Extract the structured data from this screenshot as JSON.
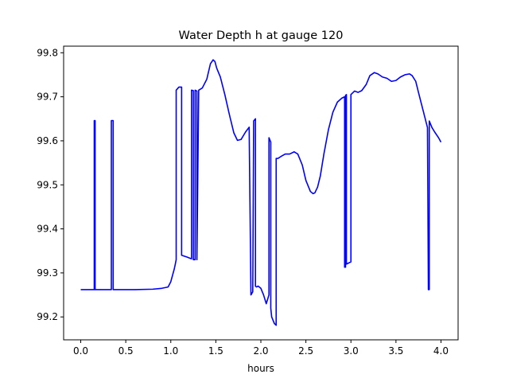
{
  "chart_data": {
    "type": "line",
    "title": "Water Depth h at gauge 120",
    "xlabel": "hours",
    "ylabel": "",
    "xlim": [
      -0.19,
      4.19
    ],
    "ylim": [
      99.148,
      99.815
    ],
    "xticks": [
      0.0,
      0.5,
      1.0,
      1.5,
      2.0,
      2.5,
      3.0,
      3.5,
      4.0
    ],
    "xtick_labels": [
      "0.0",
      "0.5",
      "1.0",
      "1.5",
      "2.0",
      "2.5",
      "3.0",
      "3.5",
      "4.0"
    ],
    "yticks": [
      99.2,
      99.3,
      99.4,
      99.5,
      99.6,
      99.7,
      99.8
    ],
    "ytick_labels": [
      "99.2",
      "99.3",
      "99.4",
      "99.5",
      "99.6",
      "99.7",
      "99.8"
    ],
    "grid": false,
    "legend": "none",
    "series": [
      {
        "color": "#0000ff",
        "x": [
          0.0,
          0.15,
          0.15,
          0.16,
          0.16,
          0.17,
          0.17,
          0.34,
          0.34,
          0.36,
          0.36,
          0.6,
          0.8,
          0.9,
          0.97,
          1.0,
          1.04,
          1.06,
          1.06,
          1.09,
          1.12,
          1.12,
          1.18,
          1.23,
          1.23,
          1.25,
          1.25,
          1.27,
          1.27,
          1.29,
          1.29,
          1.31,
          1.35,
          1.4,
          1.44,
          1.47,
          1.49,
          1.51,
          1.55,
          1.6,
          1.65,
          1.7,
          1.74,
          1.78,
          1.83,
          1.87,
          1.89,
          1.89,
          1.91,
          1.92,
          1.92,
          1.94,
          1.94,
          1.95,
          1.95,
          1.97,
          2.0,
          2.03,
          2.06,
          2.09,
          2.09,
          2.11,
          2.11,
          2.12,
          2.15,
          2.17,
          2.17,
          2.19,
          2.22,
          2.27,
          2.32,
          2.37,
          2.41,
          2.46,
          2.5,
          2.55,
          2.58,
          2.6,
          2.63,
          2.66,
          2.7,
          2.75,
          2.8,
          2.85,
          2.9,
          2.93,
          2.93,
          2.94,
          2.94,
          2.95,
          2.95,
          2.97,
          2.97,
          3.0,
          3.0,
          3.04,
          3.08,
          3.12,
          3.17,
          3.21,
          3.26,
          3.3,
          3.35,
          3.4,
          3.45,
          3.5,
          3.55,
          3.6,
          3.65,
          3.68,
          3.72,
          3.75,
          3.8,
          3.85,
          3.86,
          3.86,
          3.87,
          3.87,
          3.88,
          3.9,
          3.93,
          3.97,
          4.0
        ],
        "y": [
          99.262,
          99.262,
          99.646,
          99.646,
          99.262,
          99.262,
          99.262,
          99.262,
          99.646,
          99.646,
          99.262,
          99.262,
          99.263,
          99.265,
          99.268,
          99.28,
          99.31,
          99.33,
          99.715,
          99.722,
          99.722,
          99.34,
          99.336,
          99.332,
          99.715,
          99.714,
          99.33,
          99.33,
          99.715,
          99.713,
          99.33,
          99.715,
          99.72,
          99.74,
          99.775,
          99.784,
          99.78,
          99.765,
          99.745,
          99.705,
          99.66,
          99.618,
          99.601,
          99.603,
          99.62,
          99.631,
          99.25,
          99.25,
          99.257,
          99.645,
          99.645,
          99.65,
          99.27,
          99.268,
          99.268,
          99.27,
          99.265,
          99.25,
          99.23,
          99.25,
          99.607,
          99.597,
          99.22,
          99.2,
          99.185,
          99.181,
          99.56,
          99.56,
          99.564,
          99.57,
          99.57,
          99.575,
          99.57,
          99.545,
          99.51,
          99.485,
          99.48,
          99.482,
          99.495,
          99.52,
          99.57,
          99.625,
          99.665,
          99.688,
          99.697,
          99.7,
          99.313,
          99.313,
          99.703,
          99.705,
          99.32,
          99.322,
          99.322,
          99.325,
          99.705,
          99.713,
          99.71,
          99.714,
          99.728,
          99.748,
          99.755,
          99.752,
          99.745,
          99.742,
          99.735,
          99.737,
          99.745,
          99.75,
          99.752,
          99.748,
          99.735,
          99.71,
          99.67,
          99.63,
          99.263,
          99.262,
          99.262,
          99.645,
          99.64,
          99.63,
          99.62,
          99.608,
          99.597
        ]
      }
    ]
  }
}
